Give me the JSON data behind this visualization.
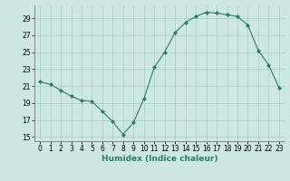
{
  "x": [
    0,
    1,
    2,
    3,
    4,
    5,
    6,
    7,
    8,
    9,
    10,
    11,
    12,
    13,
    14,
    15,
    16,
    17,
    18,
    19,
    20,
    21,
    22,
    23
  ],
  "y": [
    21.5,
    21.2,
    20.5,
    19.8,
    19.3,
    19.2,
    18.0,
    16.8,
    15.3,
    16.7,
    19.5,
    23.2,
    25.0,
    27.3,
    28.5,
    29.2,
    29.7,
    29.6,
    29.4,
    29.2,
    28.2,
    25.2,
    23.5,
    20.8
  ],
  "xlabel": "Humidex (Indice chaleur)",
  "ylabel": "",
  "xlim": [
    -0.5,
    23.5
  ],
  "ylim": [
    14.5,
    30.5
  ],
  "yticks": [
    15,
    17,
    19,
    21,
    23,
    25,
    27,
    29
  ],
  "xticks": [
    0,
    1,
    2,
    3,
    4,
    5,
    6,
    7,
    8,
    9,
    10,
    11,
    12,
    13,
    14,
    15,
    16,
    17,
    18,
    19,
    20,
    21,
    22,
    23
  ],
  "line_color": "#2d7a6e",
  "marker_color": "#2d7a6e",
  "bg_color": "#cce8e0",
  "grid_color": "#aacccc",
  "label_fontsize": 6.5,
  "tick_fontsize": 5.5
}
